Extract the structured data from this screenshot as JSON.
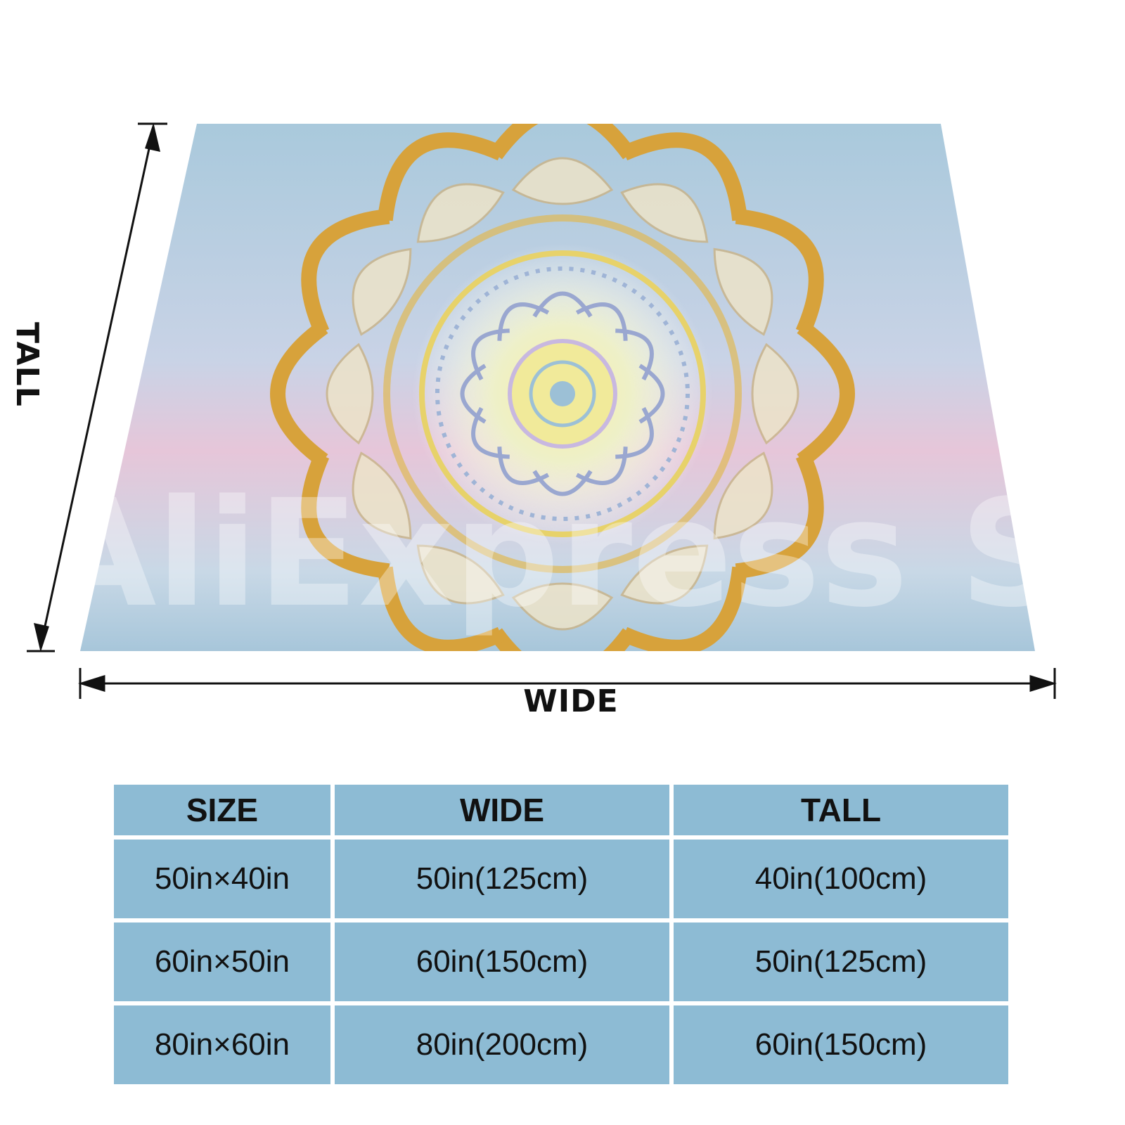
{
  "product": {
    "image_description_colors": {
      "gold": "#d9a53a",
      "blue": "#9cc0d6",
      "pink": "#e9bcd1",
      "yellow": "#f1e98a",
      "lavender": "#c8b8e0",
      "cream": "#f3ead0"
    },
    "watermark_text": "AliExpress Store"
  },
  "dimensions": {
    "wide_label": "WIDE",
    "tall_label": "TALL"
  },
  "size_table": {
    "headers": [
      "SIZE",
      "WIDE",
      "TALL"
    ],
    "rows": [
      [
        "50in×40in",
        "50in(125cm)",
        "40in(100cm)"
      ],
      [
        "60in×50in",
        "60in(150cm)",
        "50in(125cm)"
      ],
      [
        "80in×60in",
        "80in(200cm)",
        "60in(150cm)"
      ]
    ],
    "cell_color": "#8dbbd4"
  }
}
